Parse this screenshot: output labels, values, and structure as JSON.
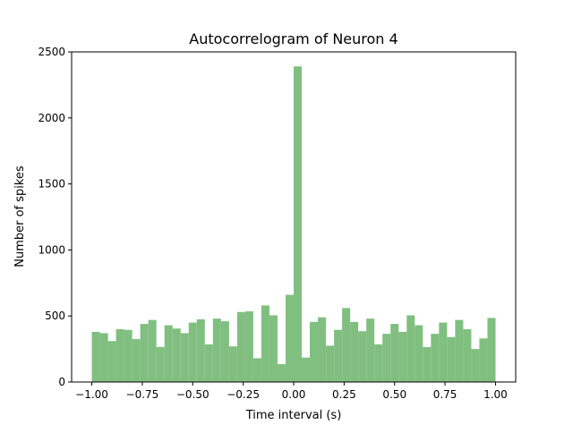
{
  "chart_data": {
    "type": "bar",
    "title": "Autocorrelogram of Neuron 4",
    "xlabel": "Time interval (s)",
    "ylabel": "Number of spikes",
    "xlim": [
      -1.1,
      1.1
    ],
    "ylim": [
      0,
      2500
    ],
    "bin_width": 0.04,
    "bin_centers": [
      -0.98,
      -0.94,
      -0.9,
      -0.86,
      -0.82,
      -0.78,
      -0.74,
      -0.7,
      -0.66,
      -0.62,
      -0.58,
      -0.54,
      -0.5,
      -0.46,
      -0.42,
      -0.38,
      -0.34,
      -0.3,
      -0.26,
      -0.22,
      -0.18,
      -0.14,
      -0.1,
      -0.06,
      -0.02,
      0.02,
      0.06,
      0.1,
      0.14,
      0.18,
      0.22,
      0.26,
      0.3,
      0.34,
      0.38,
      0.42,
      0.46,
      0.5,
      0.54,
      0.58,
      0.62,
      0.66,
      0.7,
      0.74,
      0.78,
      0.82,
      0.86,
      0.9,
      0.94,
      0.98
    ],
    "values": [
      380,
      370,
      310,
      400,
      395,
      325,
      440,
      470,
      265,
      430,
      405,
      370,
      450,
      475,
      285,
      480,
      460,
      270,
      530,
      535,
      180,
      580,
      505,
      135,
      660,
      2390,
      185,
      455,
      490,
      275,
      395,
      560,
      455,
      385,
      480,
      285,
      365,
      440,
      380,
      505,
      430,
      265,
      365,
      450,
      340,
      470,
      400,
      250,
      330,
      485
    ],
    "bar_color": "#80bf80",
    "xticks": [
      "−1.00",
      "−0.75",
      "−0.50",
      "−0.25",
      "0.00",
      "0.25",
      "0.50",
      "0.75",
      "1.00"
    ],
    "xtick_values": [
      -1.0,
      -0.75,
      -0.5,
      -0.25,
      0.0,
      0.25,
      0.5,
      0.75,
      1.0
    ],
    "yticks": [
      "0",
      "500",
      "1000",
      "1500",
      "2000",
      "2500"
    ],
    "ytick_values": [
      0,
      500,
      1000,
      1500,
      2000,
      2500
    ],
    "grid": false,
    "legend": "none"
  }
}
